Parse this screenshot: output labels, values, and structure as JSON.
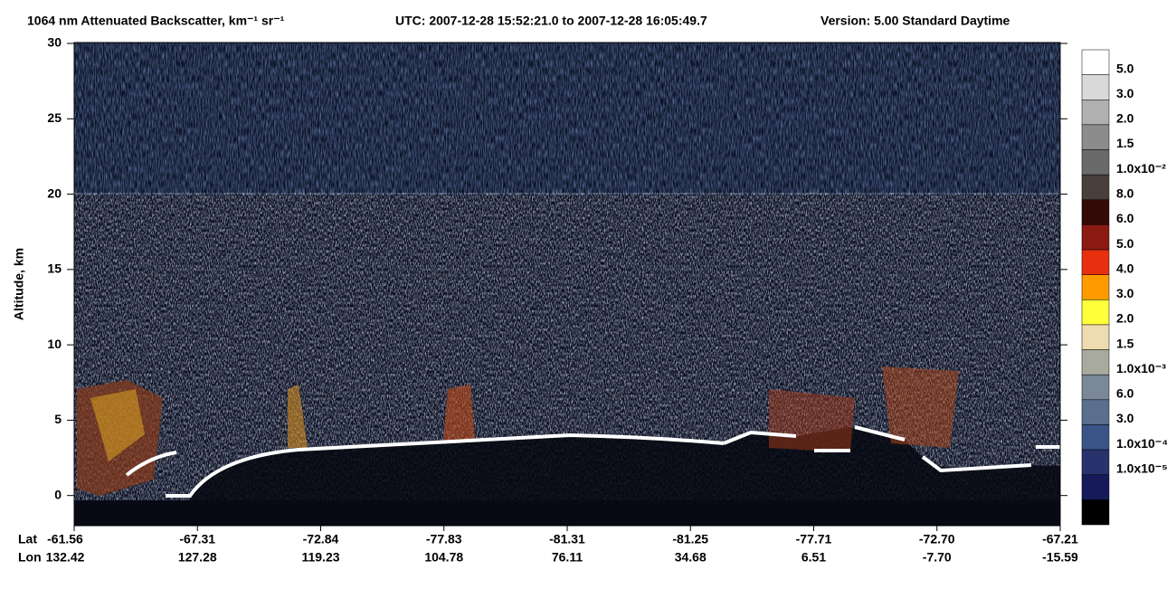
{
  "chart_data": {
    "type": "curtain",
    "title": "1064 nm Attenuated Backscatter, km⁻¹ sr⁻¹",
    "utc": "UTC:  2007-12-28 15:52:21.0  to  2007-12-28 16:05:49.7",
    "version": "Version: 5.00  Standard  Daytime",
    "y_label": "Altitude, km",
    "ylim": [
      -2,
      30
    ],
    "yticks": [
      0,
      5,
      10,
      15,
      20,
      25,
      30
    ],
    "x_row_labels": [
      "Lat",
      "Lon"
    ],
    "lat": [
      "-61.56",
      "-67.31",
      "-72.84",
      "-77.83",
      "-81.31",
      "-81.25",
      "-77.71",
      "-72.70",
      "-67.21"
    ],
    "lon": [
      "132.42",
      "127.28",
      "119.23",
      "104.78",
      "76.11",
      "34.68",
      "6.51",
      "-7.70",
      "-15.59"
    ],
    "colorbar": {
      "colors": [
        "#ffffff",
        "#d9d9d9",
        "#b0b0b0",
        "#8c8c8c",
        "#6a6a6a",
        "#4a3f3c",
        "#330a08",
        "#8a1a12",
        "#e8300f",
        "#ff9a00",
        "#ffff3a",
        "#ecdcb0",
        "#a8aa9e",
        "#7a8898",
        "#5a6e8e",
        "#3a5488",
        "#28336e",
        "#161a5a",
        "#000000"
      ],
      "labels": [
        "5.0",
        "3.0",
        "2.0",
        "1.5",
        "1.0x10⁻²",
        "8.0",
        "6.0",
        "5.0",
        "4.0",
        "3.0",
        "2.0",
        "1.5",
        "1.0x10⁻³",
        "6.0",
        "3.0",
        "1.0x10⁻⁴",
        "1.0x10⁻⁵"
      ]
    }
  }
}
